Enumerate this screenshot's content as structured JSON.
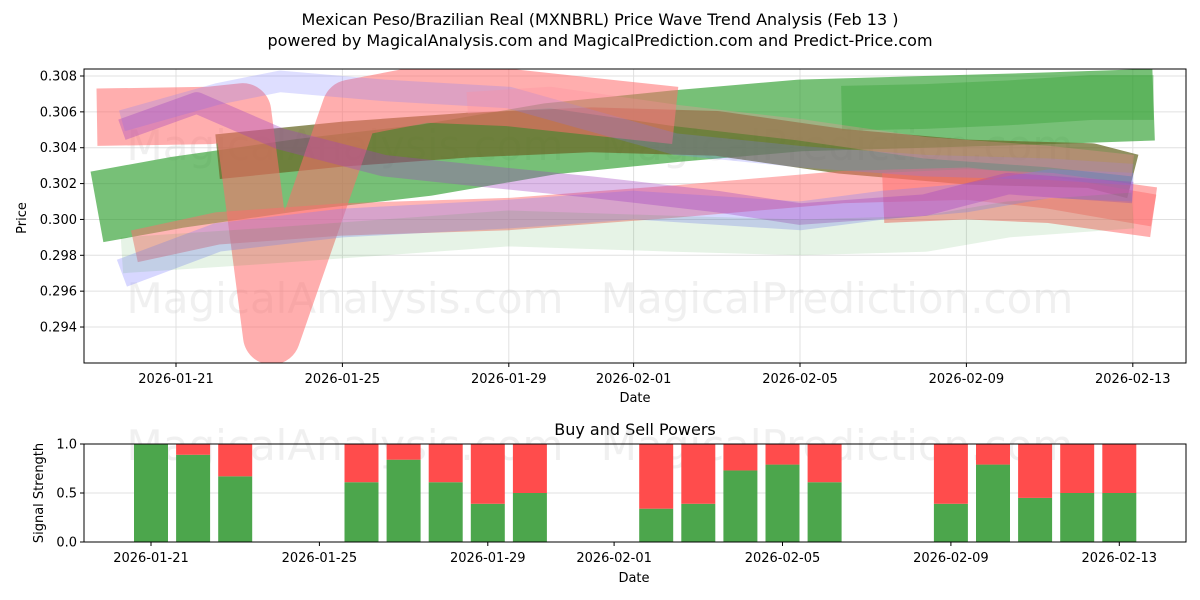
{
  "header": {
    "title": "Mexican Peso/Brazilian Real (MXNBRL) Price Wave Trend Analysis (Feb 13 )",
    "subtitle": "powered by MagicalAnalysis.com and MagicalPrediction.com and Predict-Price.com"
  },
  "watermarks": [
    "MagicalAnalysis.com",
    "MagicalPrediction.com"
  ],
  "colors": {
    "buy": "#4ca64c",
    "sell": "#ff4c4c",
    "band_green": "#2e9e2e",
    "band_red": "#ff6b6b",
    "band_blue": "#7b7bff",
    "band_purple": "#a040c0"
  },
  "chart_data": [
    {
      "type": "area",
      "title": "Mexican Peso/Brazilian Real (MXNBRL) Price Wave Trend Analysis (Feb 13 )",
      "xlabel": "Date",
      "ylabel": "Price",
      "x_ticks": [
        "2026-01-21",
        "2026-01-25",
        "2026-01-29",
        "2026-02-01",
        "2026-02-05",
        "2026-02-09",
        "2026-02-13"
      ],
      "y_ticks": [
        "0.294",
        "0.296",
        "0.298",
        "0.300",
        "0.302",
        "0.304",
        "0.306",
        "0.308"
      ],
      "ylim": [
        0.2921,
        0.3084
      ],
      "xlim": [
        "2026-01-18.8",
        "2026-02-14.3"
      ],
      "grid": true,
      "series": [
        {
          "name": "green-main",
          "color": "#2e9e2e",
          "opacity": 0.65,
          "width": 0.004,
          "x": [
            -1.9,
            0,
            3,
            6,
            9,
            12,
            15,
            18,
            21,
            23.5
          ],
          "y": [
            0.3007,
            0.3015,
            0.3025,
            0.3033,
            0.3045,
            0.3052,
            0.3058,
            0.306,
            0.3062,
            0.3064
          ]
        },
        {
          "name": "green-light",
          "color": "#2e9e2e",
          "opacity": 0.35,
          "width": 0.0025,
          "x": [
            16,
            18,
            20,
            22,
            23.5
          ],
          "y": [
            0.3062,
            0.3063,
            0.3065,
            0.3068,
            0.3068
          ]
        },
        {
          "name": "olive-main",
          "color": "#6b6b2a",
          "opacity": 0.75,
          "width": 0.0025,
          "x": [
            1,
            4,
            7,
            10,
            13,
            16,
            19,
            22,
            23
          ],
          "y": [
            0.3035,
            0.3042,
            0.3047,
            0.305,
            0.3048,
            0.3038,
            0.3032,
            0.303,
            0.3024
          ]
        },
        {
          "name": "red-v",
          "color": "#ff6b6b",
          "opacity": 0.55,
          "width": 0.0032,
          "x": [
            -1.9,
            0.8,
            1.6,
            2.3,
            4.2,
            6,
            8,
            10,
            12
          ],
          "y": [
            0.3057,
            0.3058,
            0.306,
            0.2935,
            0.3062,
            0.307,
            0.3068,
            0.3063,
            0.3058
          ]
        },
        {
          "name": "red-lower",
          "color": "#ff6b6b",
          "opacity": 0.5,
          "width": 0.0018,
          "x": [
            -1,
            1,
            4,
            8,
            12,
            16,
            19,
            21,
            23.5
          ],
          "y": [
            0.2985,
            0.2995,
            0.3,
            0.3003,
            0.301,
            0.3018,
            0.302,
            0.3015,
            0.3005
          ]
        },
        {
          "name": "red-right",
          "color": "#ff6b6b",
          "opacity": 0.55,
          "width": 0.0028,
          "x": [
            17,
            19,
            21,
            23.5
          ],
          "y": [
            0.3012,
            0.3014,
            0.3012,
            0.3004
          ]
        },
        {
          "name": "blue-upper",
          "color": "#7b7bff",
          "opacity": 0.25,
          "width": 0.0012,
          "x": [
            -1.3,
            1,
            2.5,
            5,
            8,
            10,
            12,
            15,
            18,
            21,
            23
          ],
          "y": [
            0.3055,
            0.307,
            0.3077,
            0.3072,
            0.3068,
            0.3055,
            0.3042,
            0.3035,
            0.303,
            0.3028,
            0.3025
          ]
        },
        {
          "name": "blue-lower",
          "color": "#7b7bff",
          "opacity": 0.3,
          "width": 0.0016,
          "x": [
            -1.3,
            1,
            4,
            8,
            11,
            13,
            15,
            17,
            19,
            21,
            23
          ],
          "y": [
            0.297,
            0.299,
            0.2998,
            0.3003,
            0.3008,
            0.3005,
            0.3002,
            0.3008,
            0.3012,
            0.302,
            0.3018
          ]
        },
        {
          "name": "purple-mid",
          "color": "#a040c0",
          "opacity": 0.35,
          "width": 0.0012,
          "x": [
            -1.3,
            0.5,
            2.5,
            5,
            7,
            10,
            13,
            15,
            18,
            20,
            23
          ],
          "y": [
            0.305,
            0.3065,
            0.3045,
            0.303,
            0.3025,
            0.3018,
            0.301,
            0.3003,
            0.3008,
            0.302,
            0.3015
          ]
        },
        {
          "name": "green-faint",
          "color": "#2e9e2e",
          "opacity": 0.12,
          "width": 0.002,
          "x": [
            -1.3,
            2,
            5,
            8,
            12,
            15,
            18,
            20,
            23
          ],
          "y": [
            0.298,
            0.2985,
            0.299,
            0.2995,
            0.2992,
            0.299,
            0.2992,
            0.3,
            0.3005
          ]
        },
        {
          "name": "pink-upper",
          "color": "#ff8fa0",
          "opacity": 0.3,
          "width": 0.0012,
          "x": [
            7,
            9,
            12,
            15,
            18,
            21,
            23
          ],
          "y": [
            0.3065,
            0.3068,
            0.3058,
            0.305,
            0.304,
            0.3035,
            0.303
          ]
        }
      ]
    },
    {
      "type": "bar",
      "title": "Buy and Sell Powers",
      "xlabel": "Date",
      "ylabel": "Signal Strength",
      "ylim": [
        0,
        1.0
      ],
      "y_ticks": [
        "0.0",
        "0.5",
        "1.0"
      ],
      "x_ticks": [
        "2026-01-21",
        "2026-01-25",
        "2026-01-29",
        "2026-02-01",
        "2026-02-05",
        "2026-02-09",
        "2026-02-13"
      ],
      "grid": true,
      "categories": [
        "2026-01-21",
        "2026-01-22",
        "2026-01-23",
        "2026-01-26",
        "2026-01-27",
        "2026-01-28",
        "2026-01-29",
        "2026-01-30",
        "2026-02-02",
        "2026-02-03",
        "2026-02-04",
        "2026-02-05",
        "2026-02-06",
        "2026-02-09",
        "2026-02-10",
        "2026-02-11",
        "2026-02-12",
        "2026-02-13"
      ],
      "day_offsets": [
        0,
        1,
        2,
        5,
        6,
        7,
        8,
        9,
        12,
        13,
        14,
        15,
        16,
        19,
        20,
        21,
        22,
        23
      ],
      "series": [
        {
          "name": "Buy",
          "color": "#4ca64c",
          "values": [
            1.0,
            0.89,
            0.67,
            0.61,
            0.84,
            0.61,
            0.39,
            0.5,
            0.34,
            0.39,
            0.73,
            0.79,
            0.61,
            0.39,
            0.79,
            0.45,
            0.5,
            0.5
          ]
        },
        {
          "name": "Sell",
          "color": "#ff4c4c",
          "values": [
            0.0,
            0.11,
            0.33,
            0.39,
            0.16,
            0.39,
            0.61,
            0.5,
            0.66,
            0.61,
            0.27,
            0.21,
            0.39,
            0.61,
            0.21,
            0.55,
            0.5,
            0.5
          ]
        }
      ]
    }
  ]
}
